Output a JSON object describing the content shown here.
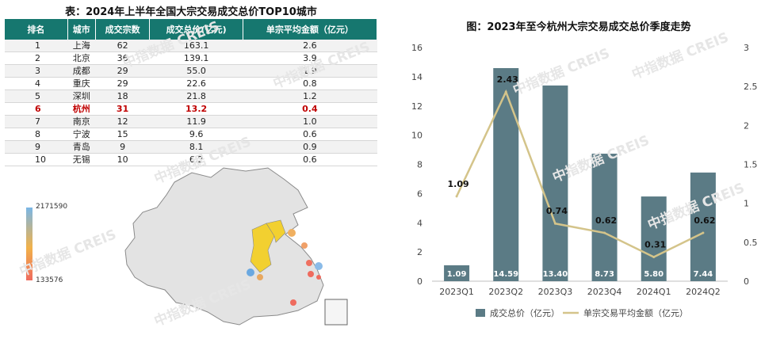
{
  "table": {
    "title": "表：2024年上半年全国大宗交易成交总价TOP10城市",
    "headers": [
      "排名",
      "城市",
      "成交宗数",
      "成交总价(亿元)",
      "单宗平均金额（亿元）"
    ],
    "rows": [
      [
        "1",
        "上海",
        "62",
        "163.1",
        "2.6"
      ],
      [
        "2",
        "北京",
        "36",
        "139.1",
        "3.9"
      ],
      [
        "3",
        "成都",
        "29",
        "55.0",
        "1.9"
      ],
      [
        "4",
        "重庆",
        "29",
        "22.6",
        "0.8"
      ],
      [
        "5",
        "深圳",
        "18",
        "21.8",
        "1.2"
      ],
      [
        "6",
        "杭州",
        "31",
        "13.2",
        "0.4"
      ],
      [
        "7",
        "南京",
        "12",
        "11.9",
        "1.0"
      ],
      [
        "8",
        "宁波",
        "15",
        "9.6",
        "0.6"
      ],
      [
        "9",
        "青岛",
        "9",
        "8.1",
        "0.9"
      ],
      [
        "10",
        "无锡",
        "10",
        "6.2",
        "0.6"
      ]
    ],
    "highlight_row": 5,
    "highlight_color": "#c00000",
    "header_color": "#16776f"
  },
  "map": {
    "legend_max": "2171590",
    "legend_min": "133576"
  },
  "watermark": {
    "text": "中指数据 CREIS"
  },
  "chart_data": {
    "type": "bar",
    "title": "图：2023年至今杭州大宗交易成交总价季度走势",
    "categories": [
      "2023Q1",
      "2023Q2",
      "2023Q3",
      "2023Q4",
      "2024Q1",
      "2024Q2"
    ],
    "series": [
      {
        "name": "成交总价（亿元）",
        "type": "bar",
        "axis": "left",
        "values": [
          1.09,
          14.59,
          13.4,
          8.73,
          5.8,
          7.44
        ],
        "labels": [
          "1.09",
          "14.59",
          "13.40",
          "8.73",
          "5.80",
          "7.44"
        ],
        "color": "#5b7b85"
      },
      {
        "name": "单宗交易平均金额（亿元）",
        "type": "line",
        "axis": "right",
        "values": [
          1.09,
          2.43,
          0.74,
          0.62,
          0.31,
          0.62
        ],
        "labels": [
          "1.09",
          "2.43",
          "0.74",
          "0.62",
          "0.31",
          "0.62"
        ],
        "color": "#d4c48a"
      }
    ],
    "ylim": [
      0,
      16
    ],
    "y_ticks": [
      "0",
      "2",
      "4",
      "6",
      "8",
      "10",
      "12",
      "14",
      "16"
    ],
    "y2lim": [
      0,
      3
    ],
    "y2_ticks": [
      "0",
      "0.5",
      "1",
      "1.5",
      "2",
      "2.5",
      "3"
    ],
    "grid": false,
    "legend_position": "bottom"
  }
}
